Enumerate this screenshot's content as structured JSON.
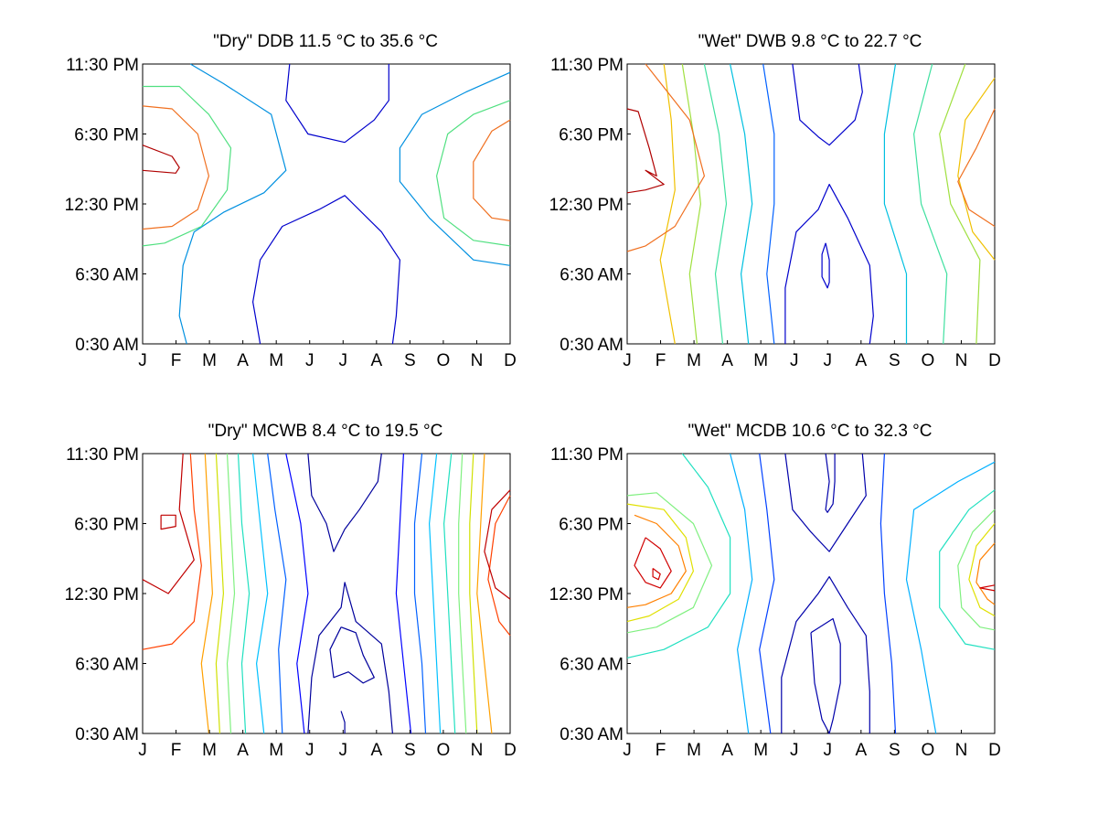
{
  "figure": {
    "x_tick_labels": [
      "J",
      "F",
      "M",
      "A",
      "M",
      "J",
      "J",
      "A",
      "S",
      "O",
      "N",
      "D"
    ],
    "y_tick_labels": [
      "11:30 PM",
      "6:30 PM",
      "12:30 PM",
      "6:30 AM",
      "0:30 AM"
    ]
  },
  "chart_data": [
    {
      "type": "contour",
      "title": "\"Dry\" DDB  11.5 °C to  35.6 °C",
      "x": [
        "J",
        "F",
        "M",
        "A",
        "M",
        "J",
        "J",
        "A",
        "S",
        "O",
        "N",
        "D"
      ],
      "y_ticks": [
        "0:30 AM",
        "6:30 AM",
        "12:30 PM",
        "6:30 PM",
        "11:30 PM"
      ],
      "value_range": [
        11.5,
        35.6
      ],
      "units": "°C",
      "level_colors": [
        "#0000cc",
        "#0090e0",
        "#50e080",
        "#f07020",
        "#b00000"
      ],
      "grid": false
    },
    {
      "type": "contour",
      "title": "\"Wet\" DWB   9.8 °C to  22.7 °C",
      "x": [
        "J",
        "F",
        "M",
        "A",
        "M",
        "J",
        "J",
        "A",
        "S",
        "O",
        "N",
        "D"
      ],
      "y_ticks": [
        "0:30 AM",
        "6:30 AM",
        "12:30 PM",
        "6:30 PM",
        "11:30 PM"
      ],
      "value_range": [
        9.8,
        22.7
      ],
      "units": "°C",
      "level_colors": [
        "#0000cc",
        "#0060ff",
        "#00c0e0",
        "#40e0a0",
        "#a0e040",
        "#f0c000",
        "#f07020",
        "#b00000"
      ],
      "grid": false
    },
    {
      "type": "contour",
      "title": "\"Dry\" MCWB   8.4 °C to  19.5 °C",
      "x": [
        "J",
        "F",
        "M",
        "A",
        "M",
        "J",
        "J",
        "A",
        "S",
        "O",
        "N",
        "D"
      ],
      "y_ticks": [
        "0:30 AM",
        "6:30 AM",
        "12:30 PM",
        "6:30 PM",
        "11:30 PM"
      ],
      "value_range": [
        8.4,
        19.5
      ],
      "units": "°C",
      "level_colors": [
        "#00009c",
        "#0000ff",
        "#0060ff",
        "#00c0ff",
        "#20e0c0",
        "#80f080",
        "#d0e000",
        "#ffa000",
        "#ff4000",
        "#c00000"
      ],
      "grid": false
    },
    {
      "type": "contour",
      "title": "\"Wet\" MCDB  10.6 °C to  32.3 °C",
      "x": [
        "J",
        "F",
        "M",
        "A",
        "M",
        "J",
        "J",
        "A",
        "S",
        "O",
        "N",
        "D"
      ],
      "y_ticks": [
        "0:30 AM",
        "6:30 AM",
        "12:30 PM",
        "6:30 PM",
        "11:30 PM"
      ],
      "value_range": [
        10.6,
        32.3
      ],
      "units": "°C",
      "level_colors": [
        "#0000aa",
        "#0040ff",
        "#00b0ff",
        "#20e0c0",
        "#80f080",
        "#e0e000",
        "#ff8000",
        "#d00000"
      ],
      "grid": false
    }
  ]
}
